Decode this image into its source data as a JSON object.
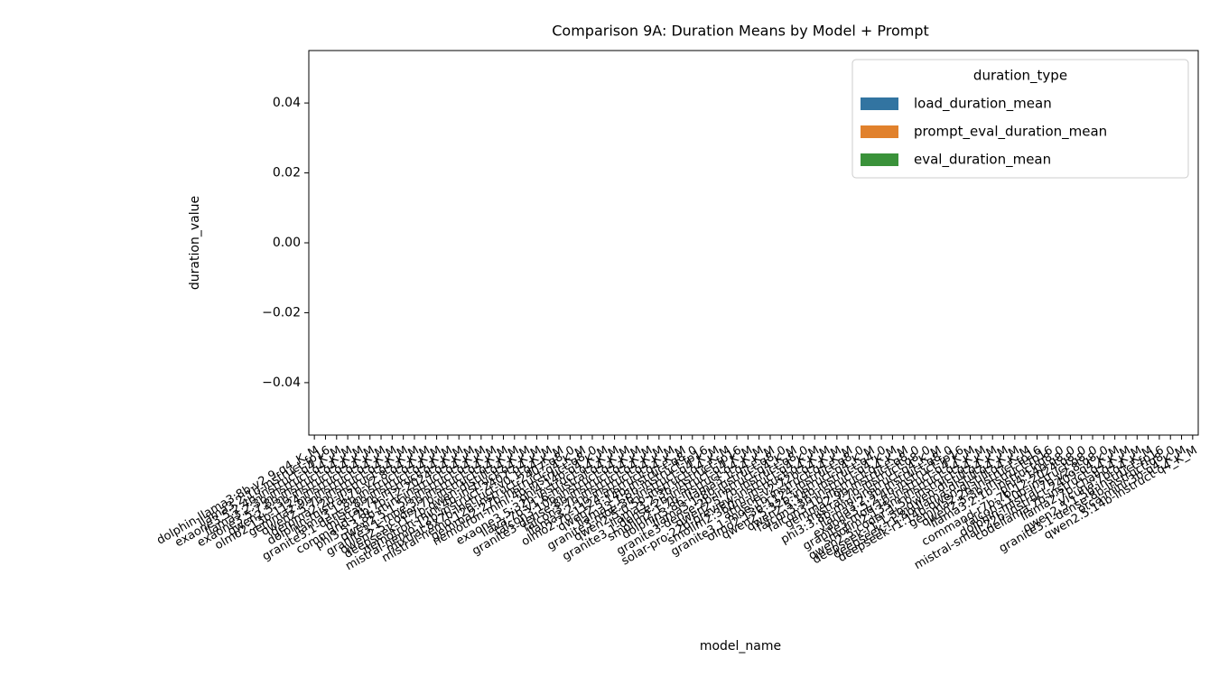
{
  "chart_data": {
    "type": "bar",
    "title": "Comparison 9A: Duration Means by Model + Prompt",
    "xlabel": "model_name",
    "ylabel": "duration_value",
    "legend_title": "duration_type",
    "legend": "upper right",
    "categories": [
      "dolphin-llama3:8b-v2.9-q4_K_M",
      "llama3.2:1b-instruct-fp16",
      "exaone3.5:2.4b-instruct-q4_K_M",
      "llama3.2:3b-instruct-q4_K_M",
      "exaone3.5:7.8b-instruct-q4_K_M",
      "qwen2.5:3b-instruct-q4_K_M",
      "olmo2:13b-1124-instruct-q4_K_M",
      "gemma2:9b-instruct-q4_K_M",
      "qwen2.5:7b-instruct-q4_K_M",
      "gemma2:2b-instruct-q4_K_M",
      "dolphin-mistral:7b-v2.8-q4_K_M",
      "llama3.1:8b-instruct-q4_K_M",
      "granite3.1-dense:8b-instruct-q4_K_M",
      "mistral:7b-instruct-q4_K_M",
      "command-r7b:7b-12-2024-q4_K_M",
      "phi3.5:3.8b-mini-instruct-q4_K_M",
      "qwen2.5:1.5b-instruct-q4_K_M",
      "granite3.1-moe:3b-instruct-q4_K_M",
      "qwen2.5-coder:7b-instruct-q4_K_M",
      "deepseek-r1:7b-qwen-distill-q4_K_M",
      "nemotron-mini:4b-instruct-q4_K_M",
      "mistral-nemo:12b-instruct-2407-q4_K_M",
      "mixtral:8x7b-instruct-v0.1-q4_K_M",
      "mistral-nemo:12b-instruct-2407-q8_0",
      "gemma2:27b-instruct-q4_K_M",
      "nemotron-mini:4b-instruct-q8_0",
      "phi4:14b-q4_K_M",
      "exaone3.5:32b-instruct-q4_K_M",
      "llava:7b-v1.6-mistral-q4_K_M",
      "falcon3:10b-instruct-q4_K_M",
      "granite3-dense:8b-instruct-q4_K_M",
      "falcon3:7b-instruct-q4_K_M",
      "llama3.2:1b-instruct-q4_K_M",
      "olmo2:7b-1124-instruct-q4_K_M",
      "qwen2.5:14b-instruct-q8_0",
      "llama3.1:8b-instruct-fp16",
      "granite3-moe:3b-instruct-q4_K_M",
      "qwen2.5:0.5b-instruct-q4_K_M",
      "llama3.2:3b-instruct-fp16",
      "granite3.1-dense:2b-instruct-q4_K_M",
      "smollm2:1.7b-instruct-q4_K_M",
      "dolphin3:8b-llama3.1-q4_K_M",
      "llama3.1:8b-instruct-q8_0",
      "granite3-dense:2b-instruct-q4_K_M",
      "qwen2.5:7b-instruct-q8_0",
      "solar-pro:22b-preview-instruct-q4_K_M",
      "smollm2:360m-instruct-q4_K_M",
      "athene-v2:72b-q4_K_M",
      "granite3.1-moe:1b-instruct-q4_K_M",
      "olmo2:13b-1124-instruct-q8_0",
      "qwen2.5:32b-instruct-q4_K_M",
      "qwen2.5:14b-instruct-q4_0",
      "falcon3:3b-instruct-q4_K_M",
      "falcon3:1b-instruct-q4_K_M",
      "gemma2:9b-instruct-q8_0",
      "mistral:7b-instruct-q8_0",
      "phi3:3.8b-mini-instruct-q4_K_M",
      "llama3.2:3b-instruct-q8_0",
      "exaone3.5:2.4b-instruct-fp16",
      "granite3-moe:1b-instruct-q4_K_M",
      "smollm2:135m-instruct-q4_K_M",
      "qwen2.5-coder:1.5b-instruct-q4_K_M",
      "deepseek-r1:1.5b-qwen-distill-q4_K_M",
      "deepseek-r1:8b-llama-distill-q4_K_M",
      "deepseek-r1:14b-qwen-distill-q4_K_M",
      "gemma2:2b-instruct-fp16",
      "qwen2.5:3b-instruct-fp16",
      "llama3.2:1b-instruct-q8_0",
      "phi4:14b-q8_0",
      "command-r7b:7b-12-2024-q8_0",
      "falcon3:10b-instruct-q8_0",
      "dolphin-mistral:7b-v2.8-q8_0",
      "mistral-small:22b-instruct-2409-q4_K_M",
      "codellama:7b-instruct-q4_K_M",
      "llama2:7b-chat-q4_K_M",
      "vicuna:7b-q4_K_M",
      "qwen2.5:1.5b-instruct-fp16",
      "granite3.1-dense:8b-instruct-q8_0",
      "orca-mini:3b-q4_K_M",
      "qwen2.5:14b-instruct-q4_K_M"
    ],
    "series": [
      {
        "name": "load_duration_mean",
        "color": "#3274a1",
        "values": [
          0,
          0,
          0,
          0,
          0,
          0,
          0,
          0,
          0,
          0,
          0,
          0,
          0,
          0,
          0,
          0,
          0,
          0,
          0,
          0,
          0,
          0,
          0,
          0,
          0,
          0,
          0,
          0,
          0,
          0,
          0,
          0,
          0,
          0,
          0,
          0,
          0,
          0,
          0,
          0,
          0,
          0,
          0,
          0,
          0,
          0,
          0,
          0,
          0,
          0,
          0,
          0,
          0,
          0,
          0,
          0,
          0,
          0,
          0,
          0,
          0,
          0,
          0,
          0,
          0,
          0,
          0,
          0,
          0,
          0,
          0,
          0,
          0,
          0,
          0,
          0,
          0,
          0,
          0,
          0
        ]
      },
      {
        "name": "prompt_eval_duration_mean",
        "color": "#e1812c",
        "values": [
          0,
          0,
          0,
          0,
          0,
          0,
          0,
          0,
          0,
          0,
          0,
          0,
          0,
          0,
          0,
          0,
          0,
          0,
          0,
          0,
          0,
          0,
          0,
          0,
          0,
          0,
          0,
          0,
          0,
          0,
          0,
          0,
          0,
          0,
          0,
          0,
          0,
          0,
          0,
          0,
          0,
          0,
          0,
          0,
          0,
          0,
          0,
          0,
          0,
          0,
          0,
          0,
          0,
          0,
          0,
          0,
          0,
          0,
          0,
          0,
          0,
          0,
          0,
          0,
          0,
          0,
          0,
          0,
          0,
          0,
          0,
          0,
          0,
          0,
          0,
          0,
          0,
          0,
          0,
          0
        ]
      },
      {
        "name": "eval_duration_mean",
        "color": "#3a923a",
        "values": [
          0,
          0,
          0,
          0,
          0,
          0,
          0,
          0,
          0,
          0,
          0,
          0,
          0,
          0,
          0,
          0,
          0,
          0,
          0,
          0,
          0,
          0,
          0,
          0,
          0,
          0,
          0,
          0,
          0,
          0,
          0,
          0,
          0,
          0,
          0,
          0,
          0,
          0,
          0,
          0,
          0,
          0,
          0,
          0,
          0,
          0,
          0,
          0,
          0,
          0,
          0,
          0,
          0,
          0,
          0,
          0,
          0,
          0,
          0,
          0,
          0,
          0,
          0,
          0,
          0,
          0,
          0,
          0,
          0,
          0,
          0,
          0,
          0,
          0,
          0,
          0,
          0,
          0,
          0,
          0
        ]
      }
    ],
    "ylim": [
      -0.055,
      0.055
    ],
    "yticks": [
      {
        "value": -0.04,
        "label": "−0.04"
      },
      {
        "value": -0.02,
        "label": "−0.02"
      },
      {
        "value": 0,
        "label": "0.00"
      },
      {
        "value": 0.02,
        "label": "0.02"
      },
      {
        "value": 0.04,
        "label": "0.04"
      }
    ],
    "grid": false
  }
}
